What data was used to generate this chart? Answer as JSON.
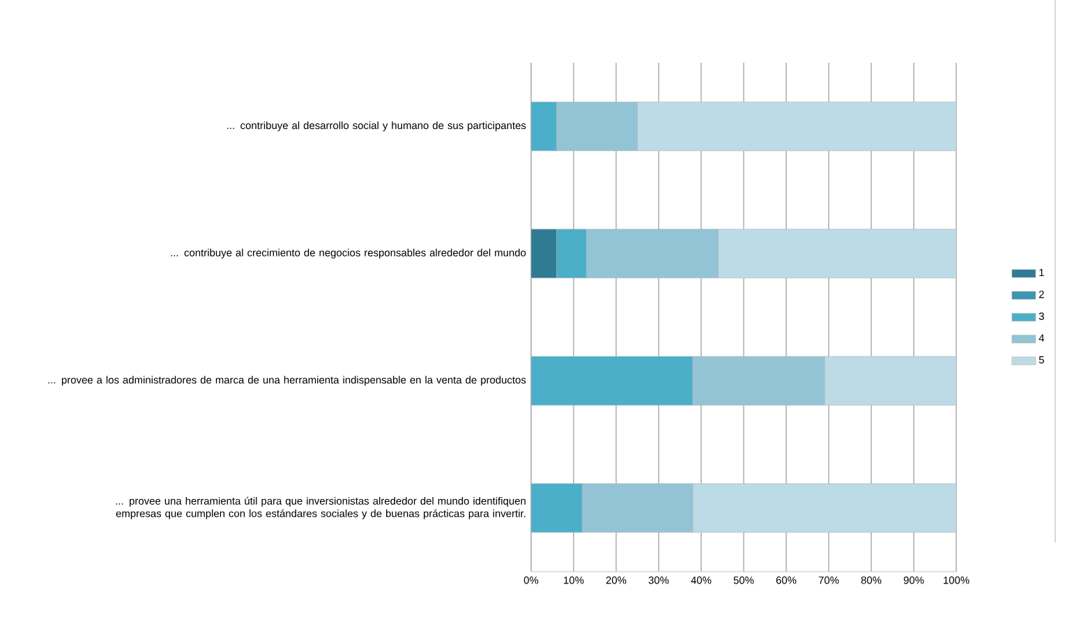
{
  "chart_data": {
    "type": "bar",
    "orientation": "horizontal",
    "stacked": true,
    "categories": [
      "... contribuye al desarrollo social y humano de sus participantes",
      "... contribuye al crecimiento de negocios responsables alrededor del mundo",
      "... provee a los administradores de marca de una herramienta indispensable en la venta de productos",
      "... provee una herramienta útil para que inversionistas alrededor del mundo identifiquen empresas que cumplen con los estándares sociales y de buenas prácticas para invertir."
    ],
    "series": [
      {
        "name": "1",
        "color": "#2e7b93",
        "values": [
          0,
          6,
          0,
          0
        ]
      },
      {
        "name": "2",
        "color": "#3b97b0",
        "values": [
          0,
          0,
          0,
          0
        ]
      },
      {
        "name": "3",
        "color": "#4bafc9",
        "values": [
          6,
          7,
          38,
          12
        ]
      },
      {
        "name": "4",
        "color": "#93c4d6",
        "values": [
          19,
          31,
          31,
          26
        ]
      },
      {
        "name": "5",
        "color": "#bcdbe6",
        "values": [
          75,
          56,
          31,
          62
        ]
      }
    ],
    "xlim": [
      0,
      100
    ],
    "xticks": [
      {
        "value": 0,
        "label": "0%"
      },
      {
        "value": 10,
        "label": "10%"
      },
      {
        "value": 20,
        "label": "20%"
      },
      {
        "value": 30,
        "label": "30%"
      },
      {
        "value": 40,
        "label": "40%"
      },
      {
        "value": 50,
        "label": "50%"
      },
      {
        "value": 60,
        "label": "60%"
      },
      {
        "value": 70,
        "label": "70%"
      },
      {
        "value": 80,
        "label": "80%"
      },
      {
        "value": 90,
        "label": "90%"
      },
      {
        "value": 100,
        "label": "100%"
      }
    ],
    "grid": "x",
    "legend": "right"
  }
}
